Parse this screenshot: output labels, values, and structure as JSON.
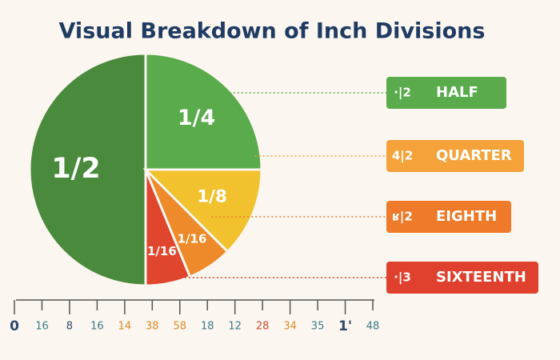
{
  "chart_data": {
    "type": "pie",
    "title": "Visual Breakdown of Inch Divisions",
    "values": [
      0.5,
      0.25,
      0.125,
      0.0625,
      0.0625
    ],
    "value_labels": [
      "1/2",
      "1/4",
      "1/8",
      "1/16",
      "1/16"
    ],
    "colors": [
      "#4a8a3c",
      "#5aab4c",
      "#f2c12e",
      "#ef8a2a",
      "#e0452e"
    ],
    "legend": [
      {
        "name": "HALF",
        "icon": "·|2",
        "color": "#5aab4c"
      },
      {
        "name": "QUARTER",
        "icon": "4|2",
        "color": "#f5a23a"
      },
      {
        "name": "EIGHTH",
        "icon": "ʁ|2",
        "color": "#ee7a2a"
      },
      {
        "name": "SIXTEENTH",
        "icon": "·|3",
        "color": "#e0402e"
      }
    ]
  },
  "ruler": {
    "labels": [
      {
        "text": "0",
        "color": "#2f4a6b"
      },
      {
        "text": "16",
        "color": "#3a7a8a"
      },
      {
        "text": "8",
        "color": "#2f4a6b"
      },
      {
        "text": "16",
        "color": "#3a7a8a"
      },
      {
        "text": "14",
        "color": "#e08a2a"
      },
      {
        "text": "38",
        "color": "#e08a2a"
      },
      {
        "text": "58",
        "color": "#e08a2a"
      },
      {
        "text": "18",
        "color": "#3a7a8a"
      },
      {
        "text": "12",
        "color": "#3a7a8a"
      },
      {
        "text": "28",
        "color": "#d9472e"
      },
      {
        "text": "34",
        "color": "#e08a2a"
      },
      {
        "text": "35",
        "color": "#3a7a8a"
      },
      {
        "text": "1'",
        "color": "#2f4a6b"
      },
      {
        "text": "48",
        "color": "#3a7a8a"
      }
    ]
  }
}
